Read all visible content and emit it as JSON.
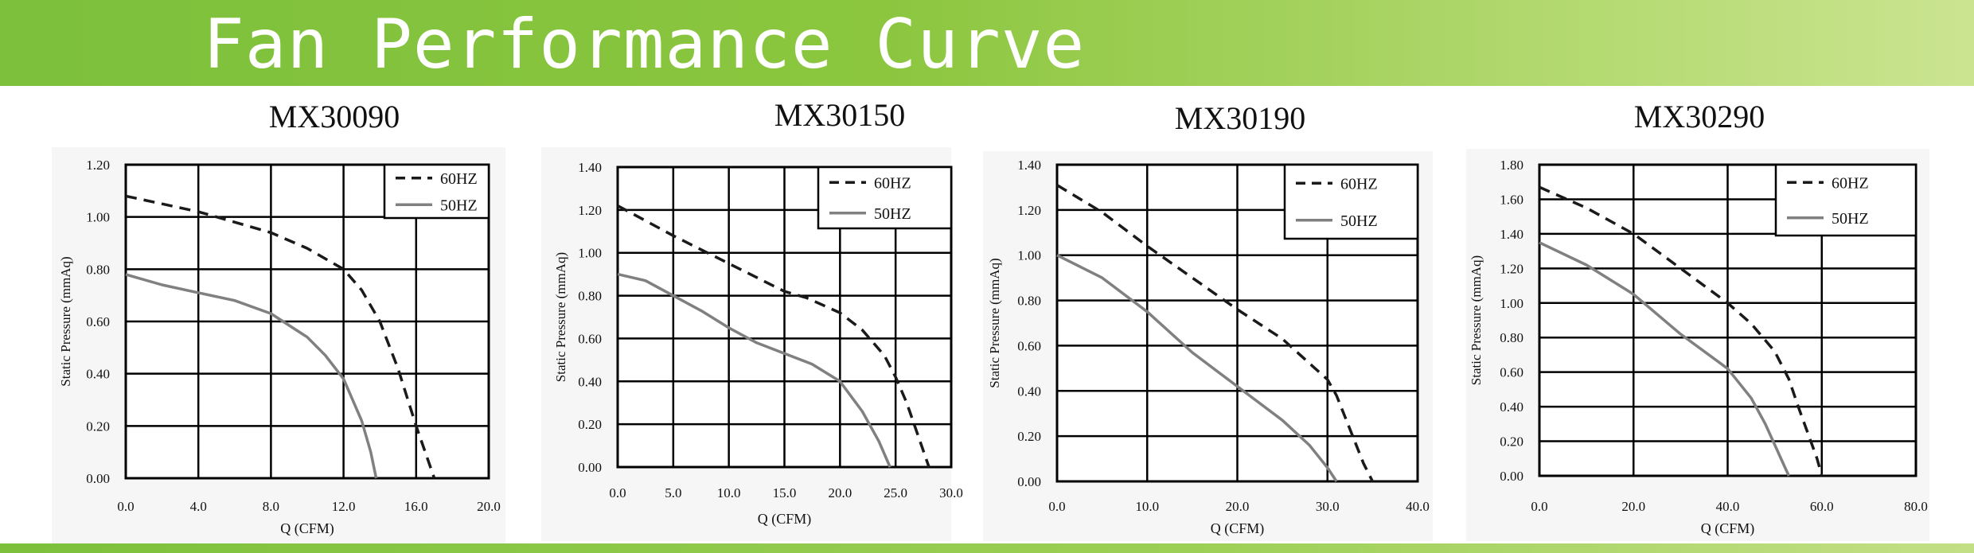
{
  "header": {
    "title": "Fan Performance Curve",
    "bg_from": "#7cc03b",
    "bg_to": "#cbe491"
  },
  "colors": {
    "panel_bg": "#f6f6f6",
    "grid": "#000000",
    "curve_60hz": "#1a1a1a",
    "curve_50hz": "#808080"
  },
  "chart_data": [
    {
      "type": "line",
      "title": "MX30090",
      "xlabel": "Q (CFM)",
      "ylabel": "Static Pressure (mmAq)",
      "xlim": [
        0,
        20
      ],
      "ylim": [
        0,
        1.2
      ],
      "xticks": [
        "0.0",
        "4.0",
        "8.0",
        "12.0",
        "16.0",
        "20.0"
      ],
      "yticks": [
        "0.00",
        "0.20",
        "0.40",
        "0.60",
        "0.80",
        "1.00",
        "1.20"
      ],
      "grid": true,
      "legend_position": "top-right",
      "series": [
        {
          "name": "60HZ",
          "style": "dashed",
          "x": [
            0,
            2,
            4,
            6,
            8,
            10,
            12,
            13,
            14,
            15,
            16,
            17
          ],
          "y": [
            1.08,
            1.05,
            1.02,
            0.98,
            0.94,
            0.88,
            0.8,
            0.72,
            0.6,
            0.42,
            0.2,
            0.0
          ]
        },
        {
          "name": "50HZ",
          "style": "solid",
          "x": [
            0,
            2,
            4,
            6,
            8,
            10,
            11,
            12,
            13,
            13.5,
            13.8
          ],
          "y": [
            0.78,
            0.74,
            0.71,
            0.68,
            0.63,
            0.54,
            0.47,
            0.38,
            0.22,
            0.1,
            0.0
          ]
        }
      ]
    },
    {
      "type": "line",
      "title": "MX30150",
      "xlabel": "Q (CFM)",
      "ylabel": "Static Pressure (mmAq)",
      "xlim": [
        0,
        30
      ],
      "ylim": [
        0,
        1.4
      ],
      "xticks": [
        "0.0",
        "5.0",
        "10.0",
        "15.0",
        "20.0",
        "25.0",
        "30.0"
      ],
      "yticks": [
        "0.00",
        "0.20",
        "0.40",
        "0.60",
        "0.80",
        "1.00",
        "1.20",
        "1.40"
      ],
      "grid": true,
      "legend_position": "top-right",
      "series": [
        {
          "name": "60HZ",
          "style": "dashed",
          "x": [
            0,
            5,
            10,
            15,
            17,
            20,
            22,
            24,
            25,
            26,
            27,
            28
          ],
          "y": [
            1.22,
            1.08,
            0.95,
            0.82,
            0.79,
            0.72,
            0.64,
            0.52,
            0.42,
            0.3,
            0.15,
            0.0
          ]
        },
        {
          "name": "50HZ",
          "style": "solid",
          "x": [
            0,
            2.5,
            5,
            7.5,
            10,
            12.5,
            15,
            17.5,
            20,
            22,
            23.5,
            24.5
          ],
          "y": [
            0.9,
            0.87,
            0.8,
            0.73,
            0.65,
            0.58,
            0.53,
            0.48,
            0.4,
            0.26,
            0.12,
            0.0
          ]
        }
      ]
    },
    {
      "type": "line",
      "title": "MX30190",
      "xlabel": "Q (CFM)",
      "ylabel": "Static Pressure (mmAq)",
      "xlim": [
        0,
        40
      ],
      "ylim": [
        0,
        1.4
      ],
      "xticks": [
        "0.0",
        "10.0",
        "20.0",
        "30.0",
        "40.0"
      ],
      "yticks": [
        "0.00",
        "0.20",
        "0.40",
        "0.60",
        "0.80",
        "1.00",
        "1.20",
        "1.40"
      ],
      "grid": true,
      "legend_position": "top-right",
      "series": [
        {
          "name": "60HZ",
          "style": "dashed",
          "x": [
            0,
            5,
            10,
            15,
            20,
            25,
            30,
            31,
            32,
            33,
            34,
            35
          ],
          "y": [
            1.31,
            1.19,
            1.04,
            0.9,
            0.76,
            0.63,
            0.45,
            0.38,
            0.28,
            0.18,
            0.08,
            0.0
          ]
        },
        {
          "name": "50HZ",
          "style": "solid",
          "x": [
            0,
            5,
            10,
            15,
            20,
            25,
            28,
            30,
            31
          ],
          "y": [
            1.0,
            0.9,
            0.75,
            0.57,
            0.42,
            0.27,
            0.16,
            0.06,
            0.0
          ]
        }
      ]
    },
    {
      "type": "line",
      "title": "MX30290",
      "xlabel": "Q (CFM)",
      "ylabel": "Static Pressure (mmAq)",
      "xlim": [
        0,
        80
      ],
      "ylim": [
        0,
        1.8
      ],
      "xticks": [
        "0.0",
        "20.0",
        "40.0",
        "60.0",
        "80.0"
      ],
      "yticks": [
        "0.00",
        "0.20",
        "0.40",
        "0.60",
        "0.80",
        "1.00",
        "1.20",
        "1.40",
        "1.60",
        "1.80"
      ],
      "grid": true,
      "legend_position": "top-right",
      "series": [
        {
          "name": "60HZ",
          "style": "dashed",
          "x": [
            0,
            10,
            20,
            30,
            40,
            45,
            50,
            53,
            55,
            57,
            59,
            60
          ],
          "y": [
            1.67,
            1.55,
            1.4,
            1.2,
            1.0,
            0.88,
            0.72,
            0.56,
            0.4,
            0.25,
            0.1,
            0.0
          ]
        },
        {
          "name": "50HZ",
          "style": "solid",
          "x": [
            0,
            10,
            20,
            30,
            40,
            45,
            48,
            50,
            52,
            53
          ],
          "y": [
            1.35,
            1.22,
            1.05,
            0.82,
            0.62,
            0.45,
            0.3,
            0.18,
            0.06,
            0.0
          ]
        }
      ]
    }
  ]
}
